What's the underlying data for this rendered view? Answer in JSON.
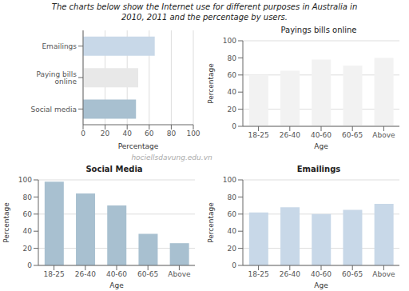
{
  "title": "The charts below show the Internet use for different purposes in Australia in\n2010, 2011 and the percentage by users.",
  "annotations": [
    "hociellsdavung.edu.vn"
  ],
  "chart_data": [
    {
      "type": "bar",
      "orientation": "horizontal",
      "categories": [
        "Emailings",
        "Paying bills online",
        "Social media"
      ],
      "values": [
        65,
        50,
        48
      ],
      "colors": [
        "#c8d8e8",
        "#e8e8e8",
        "#a8c0d0"
      ],
      "xlabel": "Percentage",
      "xlim": [
        0,
        100
      ],
      "xticks": [
        0,
        20,
        40,
        60,
        80,
        100
      ],
      "grid": true
    },
    {
      "type": "bar",
      "title": "Payings bills online",
      "categories": [
        "18-25",
        "26-40",
        "40-60",
        "60-65",
        "Above"
      ],
      "values": [
        60,
        65,
        78,
        71,
        80
      ],
      "color": "#f2f2f2",
      "xlabel": "Age",
      "ylabel": "Percentage",
      "ylim": [
        0,
        100
      ],
      "yticks": [
        0,
        20,
        40,
        60,
        80,
        100
      ],
      "grid": true
    },
    {
      "type": "bar",
      "title": "Social Media",
      "categories": [
        "18-25",
        "26-40",
        "40-60",
        "60-65",
        "Above"
      ],
      "values": [
        98,
        84,
        70,
        37,
        26
      ],
      "color": "#a8c0d0",
      "xlabel": "Age",
      "ylabel": "Percentage",
      "ylim": [
        0,
        100
      ],
      "yticks": [
        0,
        20,
        40,
        60,
        80,
        100
      ],
      "grid": true
    },
    {
      "type": "bar",
      "title": "Emailings",
      "categories": [
        "18-25",
        "26-40",
        "40-60",
        "60-65",
        "Above"
      ],
      "values": [
        62,
        68,
        60,
        65,
        72
      ],
      "color": "#c8d8e8",
      "xlabel": "Age",
      "ylabel": "Percentage",
      "ylim": [
        0,
        100
      ],
      "yticks": [
        0,
        20,
        40,
        60,
        80,
        100
      ],
      "grid": true
    }
  ]
}
